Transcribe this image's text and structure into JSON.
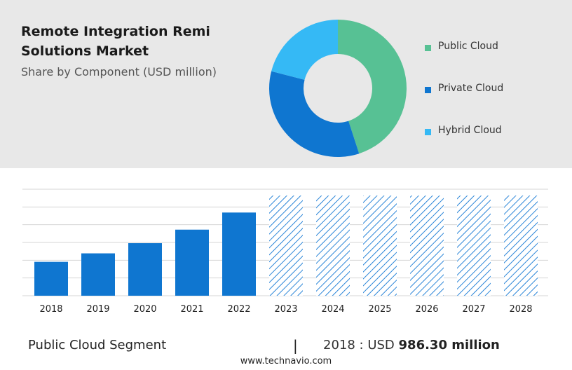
{
  "header": {
    "title": "Remote Integration Remi Solutions Market",
    "subtitle": "Share by Component (USD million)"
  },
  "legend": [
    {
      "label": "Public Cloud",
      "color": "#57c194"
    },
    {
      "label": "Private Cloud",
      "color": "#0f76d0"
    },
    {
      "label": "Hybrid Cloud",
      "color": "#35b9f5"
    }
  ],
  "chart_data": [
    {
      "type": "pie",
      "subtype": "donut",
      "title": "Share by Component (USD million)",
      "categories": [
        "Public Cloud",
        "Private Cloud",
        "Hybrid Cloud"
      ],
      "values": [
        45,
        34,
        21
      ],
      "colors": [
        "#57c194",
        "#0f76d0",
        "#35b9f5"
      ],
      "legend_position": "right"
    },
    {
      "type": "bar",
      "categories": [
        "2018",
        "2019",
        "2020",
        "2021",
        "2022",
        "2023",
        "2024",
        "2025",
        "2026",
        "2027",
        "2028"
      ],
      "values": [
        986.3,
        1233,
        1529,
        1923,
        2421,
        2915,
        2915,
        2915,
        2915,
        2915,
        2915
      ],
      "forecast_from": "2023",
      "forecast_style": "hatched",
      "bar_color": "#0f76d0",
      "hatch_color": "#2a85d8",
      "ylim": [
        0,
        3100
      ],
      "gridlines": 7,
      "grid": true
    }
  ],
  "footer": {
    "segment": "Public Cloud Segment",
    "divider": "|",
    "stat_prefix": "2018 : USD",
    "stat_value": "986.30 million"
  },
  "watermark": "www.technavio.com"
}
